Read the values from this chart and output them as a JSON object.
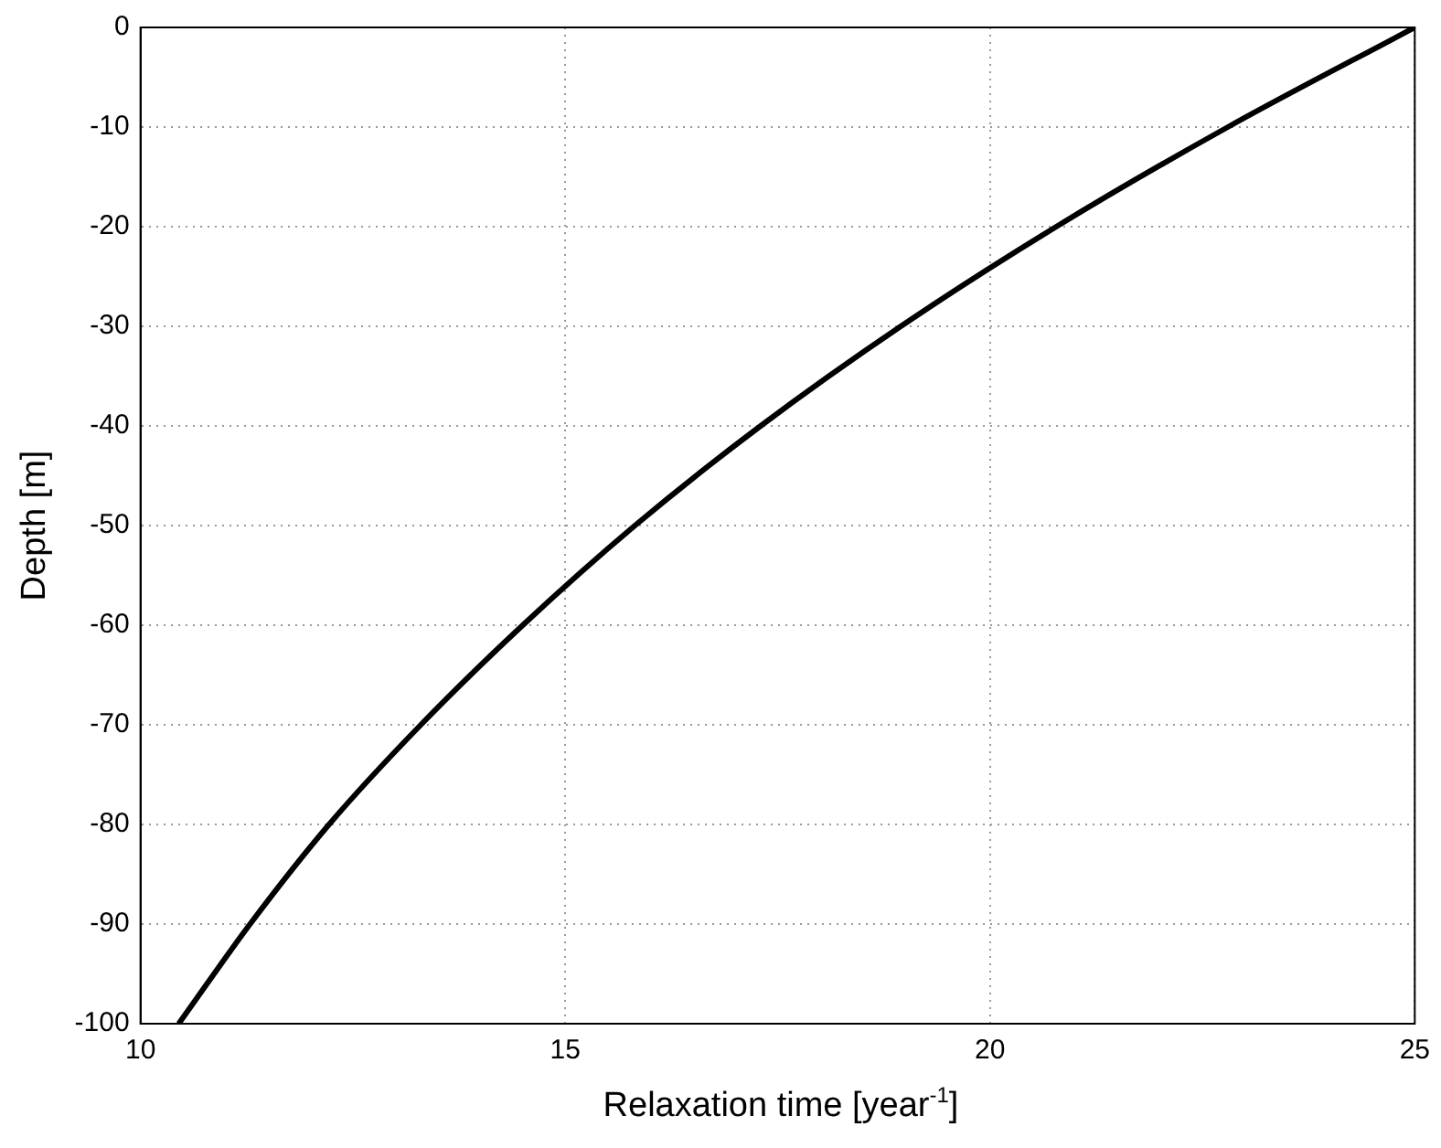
{
  "chart_data": {
    "type": "line",
    "xlabel": "Relaxation time [year$^{-1}$]",
    "ylabel": "Depth [m]",
    "xlim": [
      10,
      25
    ],
    "xticks": [
      10,
      15,
      20,
      25
    ],
    "ylim": [
      -100,
      0
    ],
    "yticks": [
      -100,
      -90,
      -80,
      -70,
      -60,
      -50,
      -40,
      -30,
      -20,
      -10,
      0
    ],
    "grid": true,
    "series": [
      {
        "color": "#000000",
        "x": [
          10.45,
          11.29,
          12.22,
          13.3,
          14.5,
          15.82,
          17.3,
          18.95,
          20.78,
          22.8,
          25
        ],
        "values": [
          -100,
          -90,
          -80,
          -70,
          -60,
          -50,
          -40,
          -30,
          -20,
          -10,
          0
        ]
      }
    ]
  }
}
